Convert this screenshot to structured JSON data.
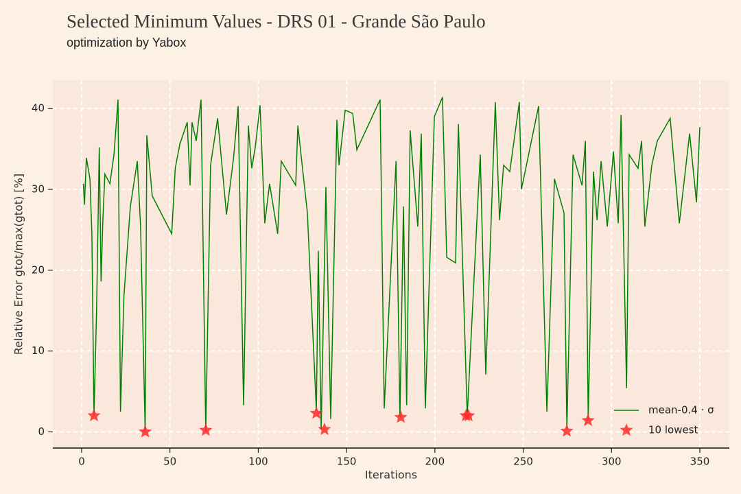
{
  "chart_data": {
    "type": "line",
    "title": "Selected Minimum Values - DRS 01 - Grande São Paulo",
    "subtitle": "optimization by Yabox",
    "xlabel": "Iterations",
    "ylabel": "Relative Error gtot/max(gtot) [%]",
    "xlim": [
      -16.3,
      366.7
    ],
    "ylim": [
      -2,
      43.5
    ],
    "xticks": [
      0,
      50,
      100,
      150,
      200,
      250,
      300,
      350
    ],
    "yticks": [
      0,
      10,
      20,
      30,
      40
    ],
    "grid": true,
    "legend": "lower right",
    "series": [
      {
        "name": "mean-0.4 · σ",
        "color": "#008000",
        "type": "line",
        "x": [
          1,
          1.6,
          2.7,
          4.7,
          5.8,
          7,
          8.5,
          10,
          11,
          12,
          13.2,
          16,
          18.3,
          20.6,
          22,
          24,
          27.6,
          31.5,
          33.4,
          36,
          36.9,
          40,
          51,
          53,
          55.6,
          59.8,
          61.4,
          62.5,
          64.9,
          67.6,
          70.3,
          73,
          77,
          82,
          86,
          88.6,
          91.7,
          94.4,
          96.3,
          98.3,
          101,
          103.7,
          106.4,
          111,
          113,
          121.2,
          122.4,
          127.8,
          132.9,
          134,
          135.6,
          138.3,
          141,
          144.5,
          145.7,
          149.2,
          153.5,
          155.8,
          169,
          171.3,
          178,
          180.2,
          182.2,
          184,
          186,
          190.3,
          192.3,
          194.6,
          199.7,
          204.3,
          206.7,
          211.7,
          213.3,
          218.3,
          224.2,
          225.7,
          228.8,
          234.2,
          236.6,
          238.9,
          242.4,
          247.8,
          249,
          258.7,
          263.4,
          267.7,
          273.1,
          274.7,
          278.2,
          283.3,
          285.2,
          286.8,
          289.8,
          291.8,
          294.1,
          297.6,
          301.1,
          303.8,
          305.4,
          308.5,
          310,
          315,
          317,
          318.9,
          322.8,
          325.9,
          333.2,
          338.4,
          344.2,
          348.1,
          350
        ],
        "values": [
          30.7,
          28.1,
          33.9,
          31.3,
          24.5,
          2.0,
          15.2,
          35.2,
          18.6,
          26.2,
          31.9,
          30.7,
          34.3,
          41.1,
          2.5,
          16.9,
          27.9,
          33.5,
          25.4,
          0,
          36.7,
          29.2,
          24.5,
          32.6,
          35.6,
          38.3,
          30.5,
          38.3,
          36,
          41.1,
          0,
          33,
          38.8,
          26.9,
          33.9,
          40.3,
          3.3,
          37.9,
          32.6,
          35.2,
          40.4,
          25.8,
          30.7,
          24.5,
          33.5,
          30.5,
          37.9,
          27.1,
          2.6,
          22.4,
          0.3,
          30.3,
          1.6,
          38.6,
          33,
          39.8,
          39.4,
          34.9,
          41.1,
          2.9,
          33.5,
          1.8,
          27.9,
          3.3,
          37.3,
          25.4,
          36.9,
          2.9,
          39,
          41.4,
          21.6,
          20.9,
          38.1,
          2.0,
          27.9,
          34.3,
          7.1,
          40.8,
          26.2,
          33,
          32.2,
          40.8,
          30,
          40.3,
          2.5,
          31.3,
          27.1,
          0.3,
          34.3,
          30.5,
          36,
          1.6,
          32.2,
          26.2,
          33.5,
          25.4,
          34.7,
          25.8,
          39.2,
          5.4,
          34.3,
          32.6,
          36,
          25.4,
          33,
          36,
          38.8,
          25.8,
          36.9,
          28.4,
          37.7
        ]
      },
      {
        "name": "10 lowest",
        "color": "#ff2a2a",
        "type": "scatter",
        "x": [
          7,
          36,
          70.3,
          132.9,
          137.5,
          180.7,
          217.6,
          219.1,
          274.7,
          286.7
        ],
        "values": [
          2.0,
          0,
          0.2,
          2.3,
          0.3,
          1.8,
          2.0,
          2.0,
          0.1,
          1.4
        ]
      }
    ]
  }
}
